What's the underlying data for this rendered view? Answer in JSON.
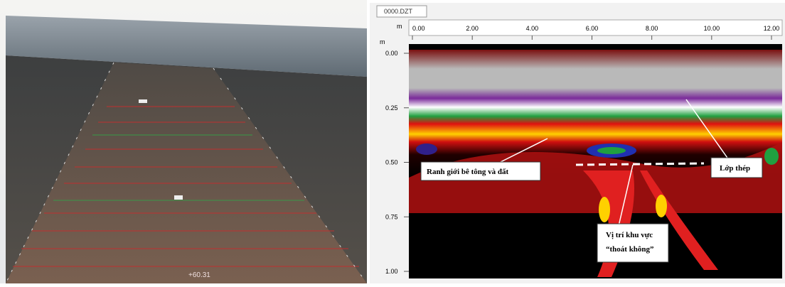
{
  "photo": {
    "station_label": "+60.31"
  },
  "radargram": {
    "tab": "0000.DZT",
    "x_unit": "m",
    "y_unit": "m",
    "x_ticks": [
      "0.00",
      "2.00",
      "4.00",
      "6.00",
      "8.00",
      "10.00",
      "12.00"
    ],
    "y_ticks": [
      "0.00",
      "0.25",
      "0.50",
      "0.75",
      "1.00"
    ],
    "annotations": {
      "boundary": "Ranh giới bê tông và đất",
      "steel": "Lớp thép",
      "void_line1": "Vị trí khu vực",
      "void_line2": "“thoát không”"
    }
  }
}
